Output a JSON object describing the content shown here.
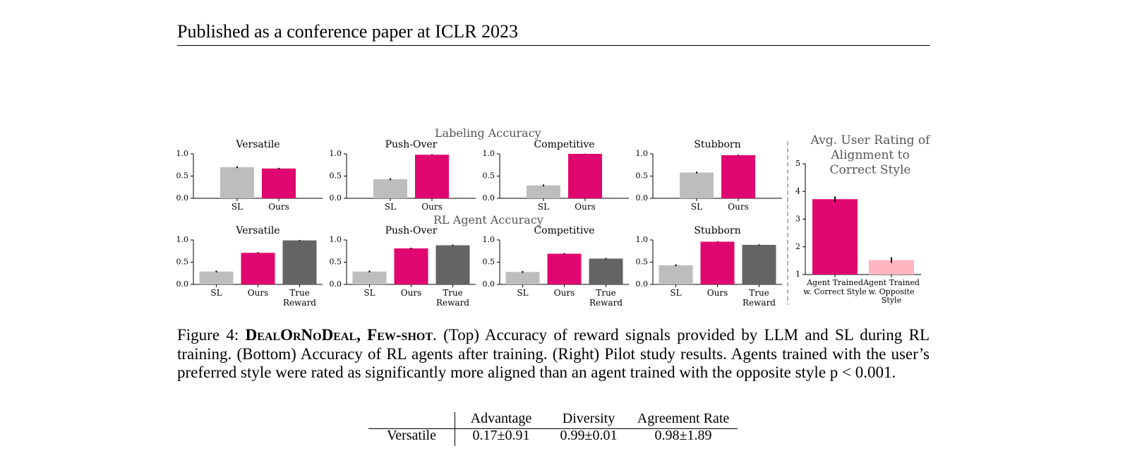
{
  "header": "Published as a conference paper at ICLR 2023",
  "figure": {
    "top_title": "Labeling Accuracy",
    "bottom_title": "RL Agent Accuracy"
  },
  "chart_data": [
    {
      "type": "bar",
      "title": "Versatile",
      "categories": [
        "SL",
        "Ours"
      ],
      "values": [
        0.7,
        0.67
      ],
      "errors": [
        0.02,
        0.015
      ],
      "colors": [
        "#bdbdbd",
        "#e0066f"
      ],
      "ylim": [
        0,
        1
      ],
      "yticks": [
        {
          "value": 0,
          "label": "0.0"
        },
        {
          "value": 0.5,
          "label": "0.5"
        },
        {
          "value": 1,
          "label": "1.0"
        }
      ]
    },
    {
      "type": "bar",
      "title": "Push-Over",
      "categories": [
        "SL",
        "Ours"
      ],
      "values": [
        0.43,
        0.98
      ],
      "errors": [
        0.02,
        0.01
      ],
      "colors": [
        "#bdbdbd",
        "#e0066f"
      ],
      "ylim": [
        0,
        1
      ],
      "yticks": [
        {
          "value": 0,
          "label": "0.0"
        },
        {
          "value": 0.5,
          "label": "0.5"
        },
        {
          "value": 1,
          "label": "1.0"
        }
      ]
    },
    {
      "type": "bar",
      "title": "Competitive",
      "categories": [
        "SL",
        "Ours"
      ],
      "values": [
        0.29,
        1.0
      ],
      "errors": [
        0.02,
        0.005
      ],
      "colors": [
        "#bdbdbd",
        "#e0066f"
      ],
      "ylim": [
        0,
        1
      ],
      "yticks": [
        {
          "value": 0,
          "label": "0.0"
        },
        {
          "value": 0.5,
          "label": "0.5"
        },
        {
          "value": 1,
          "label": "1.0"
        }
      ]
    },
    {
      "type": "bar",
      "title": "Stubborn",
      "categories": [
        "SL",
        "Ours"
      ],
      "values": [
        0.58,
        0.97
      ],
      "errors": [
        0.02,
        0.01
      ],
      "colors": [
        "#bdbdbd",
        "#e0066f"
      ],
      "ylim": [
        0,
        1
      ],
      "yticks": [
        {
          "value": 0,
          "label": "0.0"
        },
        {
          "value": 0.5,
          "label": "0.5"
        },
        {
          "value": 1,
          "label": "1.0"
        }
      ]
    },
    {
      "type": "bar",
      "title": "Versatile",
      "categories": [
        "SL",
        "Ours",
        "True Reward"
      ],
      "values": [
        0.29,
        0.71,
        0.99
      ],
      "errors": [
        0.02,
        0.015,
        0.01
      ],
      "colors": [
        "#bdbdbd",
        "#e0066f",
        "#646464"
      ],
      "ylim": [
        0,
        1
      ],
      "yticks": [
        {
          "value": 0,
          "label": "0.0"
        },
        {
          "value": 0.5,
          "label": "0.5"
        },
        {
          "value": 1,
          "label": "1.0"
        }
      ]
    },
    {
      "type": "bar",
      "title": "Push-Over",
      "categories": [
        "SL",
        "Ours",
        "True Reward"
      ],
      "values": [
        0.29,
        0.81,
        0.88
      ],
      "errors": [
        0.02,
        0.015,
        0.015
      ],
      "colors": [
        "#bdbdbd",
        "#e0066f",
        "#646464"
      ],
      "ylim": [
        0,
        1
      ],
      "yticks": [
        {
          "value": 0,
          "label": "0.0"
        },
        {
          "value": 0.5,
          "label": "0.5"
        },
        {
          "value": 1,
          "label": "1.0"
        }
      ]
    },
    {
      "type": "bar",
      "title": "Competitive",
      "categories": [
        "SL",
        "Ours",
        "True Reward"
      ],
      "values": [
        0.28,
        0.69,
        0.58
      ],
      "errors": [
        0.02,
        0.015,
        0.015
      ],
      "colors": [
        "#bdbdbd",
        "#e0066f",
        "#646464"
      ],
      "ylim": [
        0,
        1
      ],
      "yticks": [
        {
          "value": 0,
          "label": "0.0"
        },
        {
          "value": 0.5,
          "label": "0.5"
        },
        {
          "value": 1,
          "label": "1.0"
        }
      ]
    },
    {
      "type": "bar",
      "title": "Stubborn",
      "categories": [
        "SL",
        "Ours",
        "True Reward"
      ],
      "values": [
        0.43,
        0.96,
        0.89
      ],
      "errors": [
        0.02,
        0.01,
        0.01
      ],
      "colors": [
        "#bdbdbd",
        "#e0066f",
        "#646464"
      ],
      "ylim": [
        0,
        1
      ],
      "yticks": [
        {
          "value": 0,
          "label": "0.0"
        },
        {
          "value": 0.5,
          "label": "0.5"
        },
        {
          "value": 1,
          "label": "1.0"
        }
      ]
    },
    {
      "type": "bar",
      "title": "Avg. User Rating of Alignment to Correct Style",
      "categories": [
        "Agent Trained w. Correct Style",
        "Agent Trained w. Opposite Style"
      ],
      "values": [
        3.72,
        1.52
      ],
      "errors": [
        0.1,
        0.1
      ],
      "colors": [
        "#e0066f",
        "#ffb6c1"
      ],
      "ylim": [
        1,
        5
      ],
      "yticks": [
        1,
        2,
        3,
        4,
        5
      ]
    }
  ],
  "caption": {
    "label": "Figure 4:",
    "name": "DealOrNoDeal, Few-shot",
    "text": ". (Top) Accuracy of reward signals provided by LLM and SL during RL training. (Bottom) Accuracy of RL agents after training. (Right) Pilot study results. Agents trained with the user’s preferred style were rated as significantly more aligned than an agent trained with the opposite style p < 0.001."
  },
  "table": {
    "columns": [
      "Advantage",
      "Diversity",
      "Agreement Rate"
    ],
    "rows": [
      [
        "Versatile",
        "0.17±0.91",
        "0.99±0.01",
        "0.98±1.89"
      ]
    ]
  }
}
